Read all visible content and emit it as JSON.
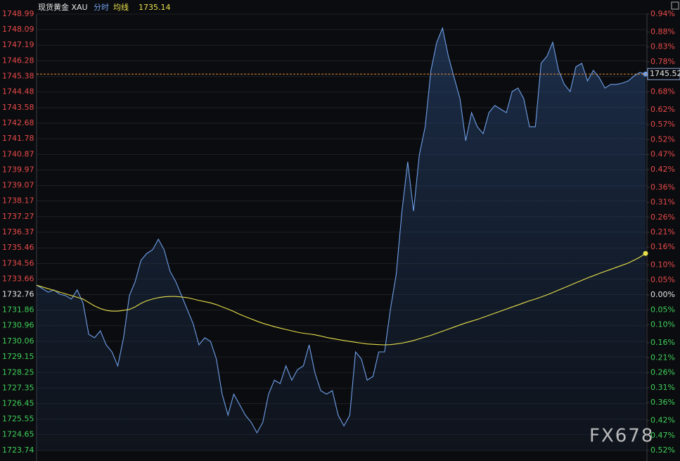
{
  "chart_data": {
    "type": "line",
    "title": "现货黄金 XAU",
    "watermark": "FX678",
    "ylim": [
      1723.74,
      1748.99
    ],
    "yticks": [
      1748.99,
      1748.09,
      1747.19,
      1746.28,
      1745.38,
      1744.48,
      1743.58,
      1742.68,
      1741.78,
      1740.87,
      1739.97,
      1739.07,
      1738.17,
      1737.27,
      1736.37,
      1735.46,
      1734.56,
      1733.66,
      1732.76,
      1731.86,
      1730.96,
      1730.06,
      1729.15,
      1728.25,
      1727.35,
      1726.45,
      1725.55,
      1724.65,
      1723.74
    ],
    "y2lim": [
      -0.52,
      0.94
    ],
    "y2ticks": [
      {
        "value": 0.94,
        "label": "0.94%"
      },
      {
        "value": 0.88,
        "label": "0.88%"
      },
      {
        "value": 0.83,
        "label": "0.83%"
      },
      {
        "value": 0.78,
        "label": "0.78%"
      },
      {
        "value": 0.73,
        "label": "0.73%"
      },
      {
        "value": 0.68,
        "label": "0.68%"
      },
      {
        "value": 0.62,
        "label": "0.62%"
      },
      {
        "value": 0.57,
        "label": "0.57%"
      },
      {
        "value": 0.52,
        "label": "0.52%"
      },
      {
        "value": 0.47,
        "label": "0.47%"
      },
      {
        "value": 0.42,
        "label": "0.42%"
      },
      {
        "value": 0.36,
        "label": "0.36%"
      },
      {
        "value": 0.31,
        "label": "0.31%"
      },
      {
        "value": 0.26,
        "label": "0.26%"
      },
      {
        "value": 0.21,
        "label": "0.21%"
      },
      {
        "value": 0.16,
        "label": "0.16%"
      },
      {
        "value": 0.1,
        "label": "0.10%"
      },
      {
        "value": 0.05,
        "label": "0.05%"
      },
      {
        "value": 0,
        "label": "0.00%"
      },
      {
        "value": -0.05,
        "label": "0.05%"
      },
      {
        "value": -0.1,
        "label": "0.10%"
      },
      {
        "value": -0.16,
        "label": "0.16%"
      },
      {
        "value": -0.21,
        "label": "0.21%"
      },
      {
        "value": -0.26,
        "label": "0.26%"
      },
      {
        "value": -0.31,
        "label": "0.31%"
      },
      {
        "value": -0.36,
        "label": "0.36%"
      },
      {
        "value": -0.42,
        "label": "0.42%"
      },
      {
        "value": -0.47,
        "label": "0.47%"
      },
      {
        "value": -0.52,
        "label": "0.52%"
      }
    ],
    "grid": true,
    "series": [
      {
        "name": "分时",
        "color": "#6f9fe8",
        "values": [
          1733.31,
          1733.11,
          1732.9,
          1733.03,
          1732.78,
          1732.7,
          1732.5,
          1733.03,
          1732.29,
          1730.46,
          1730.26,
          1730.66,
          1729.85,
          1729.44,
          1728.63,
          1730.26,
          1732.7,
          1733.51,
          1734.74,
          1735.14,
          1735.35,
          1735.96,
          1735.35,
          1734.12,
          1733.51,
          1732.7,
          1731.89,
          1731.07,
          1729.85,
          1730.26,
          1730.05,
          1729.03,
          1727.0,
          1725.78,
          1727.0,
          1726.39,
          1725.78,
          1725.37,
          1724.76,
          1725.37,
          1727.0,
          1727.81,
          1727.61,
          1728.63,
          1727.81,
          1728.42,
          1728.63,
          1729.85,
          1728.22,
          1727.2,
          1727.0,
          1727.2,
          1725.78,
          1725.16,
          1725.78,
          1729.44,
          1729.03,
          1727.81,
          1728.02,
          1729.44,
          1729.44,
          1731.89,
          1733.92,
          1737.59,
          1740.44,
          1737.59,
          1740.84,
          1742.47,
          1745.73,
          1747.36,
          1748.18,
          1746.55,
          1745.32,
          1744.1,
          1741.66,
          1743.29,
          1742.47,
          1742.07,
          1743.29,
          1743.7,
          1743.49,
          1743.29,
          1744.51,
          1744.71,
          1744.1,
          1742.47,
          1742.47,
          1746.14,
          1746.55,
          1747.36,
          1745.73,
          1744.92,
          1744.51,
          1745.94,
          1746.14,
          1745.12,
          1745.73,
          1745.32,
          1744.71,
          1744.92,
          1744.92,
          1745.0,
          1745.12,
          1745.41,
          1745.61,
          1745.52
        ]
      },
      {
        "name": "均线",
        "color": "#e8e04a",
        "values": [
          1733.3,
          1733.2,
          1733.1,
          1733.0,
          1732.9,
          1732.8,
          1732.7,
          1732.6,
          1732.5,
          1732.3,
          1732.1,
          1731.95,
          1731.85,
          1731.8,
          1731.8,
          1731.85,
          1731.9,
          1732.05,
          1732.25,
          1732.4,
          1732.5,
          1732.58,
          1732.63,
          1732.65,
          1732.65,
          1732.62,
          1732.58,
          1732.5,
          1732.42,
          1732.35,
          1732.28,
          1732.18,
          1732.05,
          1731.92,
          1731.78,
          1731.62,
          1731.48,
          1731.35,
          1731.22,
          1731.1,
          1731.0,
          1730.9,
          1730.82,
          1730.74,
          1730.66,
          1730.58,
          1730.52,
          1730.48,
          1730.43,
          1730.36,
          1730.28,
          1730.22,
          1730.16,
          1730.1,
          1730.05,
          1730.0,
          1729.95,
          1729.9,
          1729.88,
          1729.86,
          1729.85,
          1729.86,
          1729.9,
          1729.95,
          1730.02,
          1730.1,
          1730.2,
          1730.3,
          1730.4,
          1730.52,
          1730.64,
          1730.76,
          1730.88,
          1731.0,
          1731.12,
          1731.22,
          1731.32,
          1731.44,
          1731.56,
          1731.68,
          1731.8,
          1731.92,
          1732.04,
          1732.16,
          1732.28,
          1732.4,
          1732.5,
          1732.62,
          1732.74,
          1732.88,
          1733.02,
          1733.16,
          1733.3,
          1733.44,
          1733.58,
          1733.72,
          1733.85,
          1733.98,
          1734.1,
          1734.22,
          1734.34,
          1734.46,
          1734.58,
          1734.75,
          1734.92,
          1735.14
        ]
      }
    ]
  }
}
